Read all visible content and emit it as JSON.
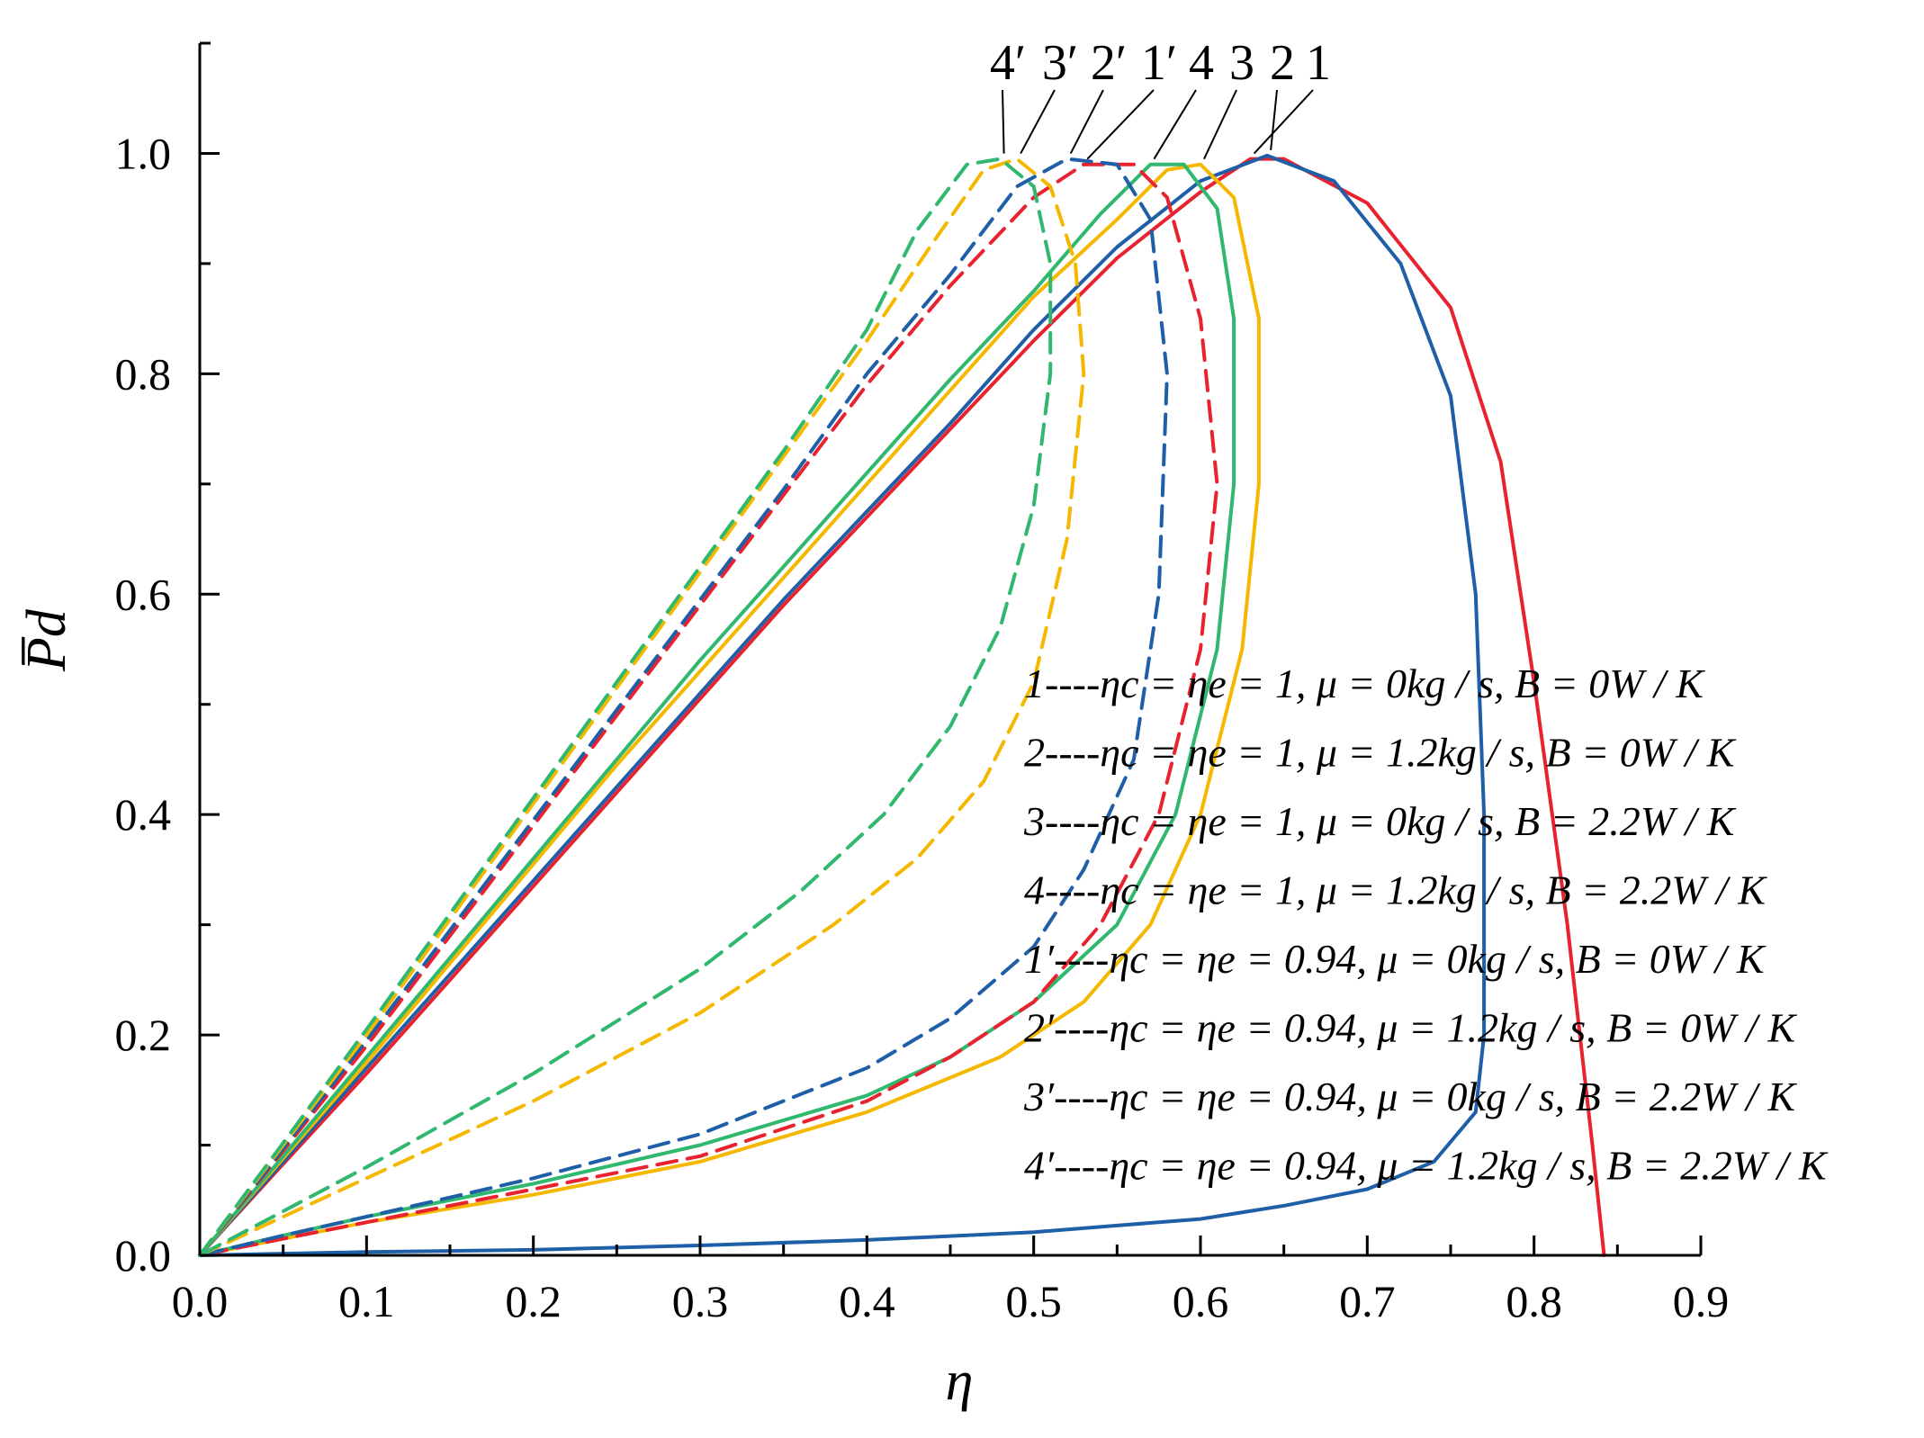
{
  "chart_data": {
    "type": "line",
    "xlabel": "η",
    "ylabel": "P̅d",
    "xlim": [
      0,
      0.9
    ],
    "ylim": [
      0,
      1.1
    ],
    "x_ticks": [
      "0.0",
      "0.1",
      "0.2",
      "0.3",
      "0.4",
      "0.5",
      "0.6",
      "0.7",
      "0.8",
      "0.9"
    ],
    "y_ticks": [
      "0.0",
      "0.2",
      "0.4",
      "0.6",
      "0.8",
      "1.0"
    ],
    "grid": false,
    "legend_position": "center-right",
    "series": [
      {
        "name": "1----ηc = ηe = 1,  μ = 0kg / s,  B = 0W / K",
        "label": "1",
        "color": "#e8222e",
        "dash": "solid",
        "points": [
          [
            0.0,
            0.0
          ],
          [
            0.05,
            0.083
          ],
          [
            0.1,
            0.165
          ],
          [
            0.15,
            0.25
          ],
          [
            0.2,
            0.335
          ],
          [
            0.25,
            0.42
          ],
          [
            0.3,
            0.505
          ],
          [
            0.35,
            0.59
          ],
          [
            0.4,
            0.67
          ],
          [
            0.45,
            0.75
          ],
          [
            0.5,
            0.83
          ],
          [
            0.55,
            0.905
          ],
          [
            0.6,
            0.965
          ],
          [
            0.63,
            0.995
          ],
          [
            0.65,
            0.995
          ],
          [
            0.7,
            0.955
          ],
          [
            0.75,
            0.86
          ],
          [
            0.78,
            0.72
          ],
          [
            0.8,
            0.52
          ],
          [
            0.82,
            0.3
          ],
          [
            0.835,
            0.1
          ],
          [
            0.842,
            0.0
          ]
        ]
      },
      {
        "name": "2----ηc = ηe = 1,  μ = 1.2kg / s, B = 0W / K",
        "label": "2",
        "color": "#1f5fa8",
        "dash": "solid",
        "points": [
          [
            0.0,
            0.0
          ],
          [
            0.05,
            0.085
          ],
          [
            0.1,
            0.17
          ],
          [
            0.15,
            0.255
          ],
          [
            0.2,
            0.34
          ],
          [
            0.25,
            0.425
          ],
          [
            0.3,
            0.51
          ],
          [
            0.35,
            0.595
          ],
          [
            0.4,
            0.675
          ],
          [
            0.45,
            0.755
          ],
          [
            0.5,
            0.84
          ],
          [
            0.55,
            0.915
          ],
          [
            0.6,
            0.975
          ],
          [
            0.64,
            0.998
          ],
          [
            0.68,
            0.975
          ],
          [
            0.72,
            0.9
          ],
          [
            0.75,
            0.78
          ],
          [
            0.765,
            0.6
          ],
          [
            0.77,
            0.4
          ],
          [
            0.77,
            0.2
          ],
          [
            0.765,
            0.13
          ],
          [
            0.74,
            0.085
          ],
          [
            0.7,
            0.06
          ],
          [
            0.65,
            0.045
          ],
          [
            0.6,
            0.033
          ],
          [
            0.55,
            0.027
          ],
          [
            0.5,
            0.021
          ],
          [
            0.4,
            0.014
          ],
          [
            0.3,
            0.009
          ],
          [
            0.2,
            0.005
          ],
          [
            0.1,
            0.003
          ],
          [
            0.0,
            0.0
          ]
        ]
      },
      {
        "name": "3----ηc = ηe = 1,  μ = 0kg / s,  B = 2.2W / K",
        "label": "3",
        "color": "#f5b800",
        "dash": "solid",
        "points": [
          [
            0.0,
            0.0
          ],
          [
            0.05,
            0.088
          ],
          [
            0.1,
            0.175
          ],
          [
            0.15,
            0.265
          ],
          [
            0.2,
            0.355
          ],
          [
            0.25,
            0.445
          ],
          [
            0.3,
            0.53
          ],
          [
            0.35,
            0.615
          ],
          [
            0.4,
            0.7
          ],
          [
            0.45,
            0.785
          ],
          [
            0.5,
            0.87
          ],
          [
            0.55,
            0.94
          ],
          [
            0.58,
            0.985
          ],
          [
            0.6,
            0.99
          ],
          [
            0.62,
            0.96
          ],
          [
            0.635,
            0.85
          ],
          [
            0.635,
            0.7
          ],
          [
            0.625,
            0.55
          ],
          [
            0.6,
            0.4
          ],
          [
            0.57,
            0.3
          ],
          [
            0.53,
            0.23
          ],
          [
            0.48,
            0.18
          ],
          [
            0.4,
            0.13
          ],
          [
            0.3,
            0.085
          ],
          [
            0.2,
            0.055
          ],
          [
            0.1,
            0.03
          ],
          [
            0.05,
            0.015
          ],
          [
            0.0,
            0.0
          ]
        ]
      },
      {
        "name": "4----ηc = ηe = 1,  μ = 1.2kg / s,  B = 2.2W / K",
        "label": "4",
        "color": "#2fb86e",
        "dash": "solid",
        "points": [
          [
            0.0,
            0.0
          ],
          [
            0.05,
            0.09
          ],
          [
            0.1,
            0.18
          ],
          [
            0.15,
            0.27
          ],
          [
            0.2,
            0.36
          ],
          [
            0.25,
            0.45
          ],
          [
            0.3,
            0.54
          ],
          [
            0.35,
            0.625
          ],
          [
            0.4,
            0.71
          ],
          [
            0.45,
            0.795
          ],
          [
            0.5,
            0.875
          ],
          [
            0.54,
            0.945
          ],
          [
            0.57,
            0.99
          ],
          [
            0.59,
            0.99
          ],
          [
            0.61,
            0.95
          ],
          [
            0.62,
            0.85
          ],
          [
            0.62,
            0.7
          ],
          [
            0.61,
            0.55
          ],
          [
            0.585,
            0.4
          ],
          [
            0.55,
            0.3
          ],
          [
            0.5,
            0.23
          ],
          [
            0.45,
            0.18
          ],
          [
            0.4,
            0.145
          ],
          [
            0.3,
            0.1
          ],
          [
            0.2,
            0.065
          ],
          [
            0.1,
            0.035
          ],
          [
            0.05,
            0.018
          ],
          [
            0.0,
            0.0
          ]
        ]
      },
      {
        "name": "1′----ηc = ηe = 0.94,  μ = 0kg / s,  B = 0W / K",
        "label": "1′",
        "color": "#e8222e",
        "dash": "dashed",
        "points": [
          [
            0.0,
            0.0
          ],
          [
            0.05,
            0.095
          ],
          [
            0.1,
            0.19
          ],
          [
            0.15,
            0.29
          ],
          [
            0.2,
            0.39
          ],
          [
            0.25,
            0.49
          ],
          [
            0.3,
            0.59
          ],
          [
            0.35,
            0.69
          ],
          [
            0.4,
            0.79
          ],
          [
            0.45,
            0.88
          ],
          [
            0.5,
            0.96
          ],
          [
            0.53,
            0.99
          ],
          [
            0.56,
            0.99
          ],
          [
            0.58,
            0.96
          ],
          [
            0.6,
            0.85
          ],
          [
            0.61,
            0.7
          ],
          [
            0.6,
            0.55
          ],
          [
            0.575,
            0.4
          ],
          [
            0.54,
            0.3
          ],
          [
            0.5,
            0.23
          ],
          [
            0.45,
            0.18
          ],
          [
            0.4,
            0.14
          ],
          [
            0.3,
            0.09
          ],
          [
            0.2,
            0.06
          ],
          [
            0.1,
            0.03
          ],
          [
            0.05,
            0.015
          ],
          [
            0.0,
            0.0
          ]
        ]
      },
      {
        "name": "2′----ηc = ηe = 0.94,  μ = 1.2kg / s,  B = 0W / K",
        "label": "2′",
        "color": "#1f5fa8",
        "dash": "dashed",
        "points": [
          [
            0.0,
            0.0
          ],
          [
            0.05,
            0.097
          ],
          [
            0.1,
            0.195
          ],
          [
            0.15,
            0.295
          ],
          [
            0.2,
            0.395
          ],
          [
            0.25,
            0.495
          ],
          [
            0.3,
            0.595
          ],
          [
            0.35,
            0.695
          ],
          [
            0.4,
            0.8
          ],
          [
            0.45,
            0.89
          ],
          [
            0.49,
            0.97
          ],
          [
            0.52,
            0.995
          ],
          [
            0.55,
            0.99
          ],
          [
            0.57,
            0.94
          ],
          [
            0.58,
            0.8
          ],
          [
            0.575,
            0.6
          ],
          [
            0.56,
            0.45
          ],
          [
            0.53,
            0.35
          ],
          [
            0.5,
            0.28
          ],
          [
            0.45,
            0.215
          ],
          [
            0.4,
            0.17
          ],
          [
            0.3,
            0.11
          ],
          [
            0.2,
            0.07
          ],
          [
            0.1,
            0.035
          ],
          [
            0.05,
            0.018
          ],
          [
            0.0,
            0.0
          ]
        ]
      },
      {
        "name": "3′----ηc = ηe = 0.94,  μ = 0kg / s,  B = 2.2W / K",
        "label": "3′",
        "color": "#f5b800",
        "dash": "dashed",
        "points": [
          [
            0.0,
            0.0
          ],
          [
            0.05,
            0.1
          ],
          [
            0.1,
            0.2
          ],
          [
            0.15,
            0.305
          ],
          [
            0.2,
            0.41
          ],
          [
            0.25,
            0.515
          ],
          [
            0.3,
            0.62
          ],
          [
            0.35,
            0.725
          ],
          [
            0.4,
            0.83
          ],
          [
            0.44,
            0.92
          ],
          [
            0.47,
            0.985
          ],
          [
            0.49,
            0.995
          ],
          [
            0.51,
            0.97
          ],
          [
            0.525,
            0.9
          ],
          [
            0.53,
            0.8
          ],
          [
            0.52,
            0.65
          ],
          [
            0.5,
            0.52
          ],
          [
            0.47,
            0.43
          ],
          [
            0.43,
            0.36
          ],
          [
            0.38,
            0.3
          ],
          [
            0.3,
            0.22
          ],
          [
            0.2,
            0.14
          ],
          [
            0.1,
            0.07
          ],
          [
            0.05,
            0.035
          ],
          [
            0.0,
            0.0
          ]
        ]
      },
      {
        "name": "4′----ηc = ηe = 0.94,  μ = 1.2kg / s,  B = 2.2W / K",
        "label": "4′",
        "color": "#2fb86e",
        "dash": "dashed",
        "points": [
          [
            0.0,
            0.0
          ],
          [
            0.05,
            0.102
          ],
          [
            0.1,
            0.205
          ],
          [
            0.15,
            0.31
          ],
          [
            0.2,
            0.415
          ],
          [
            0.25,
            0.52
          ],
          [
            0.3,
            0.625
          ],
          [
            0.35,
            0.73
          ],
          [
            0.4,
            0.84
          ],
          [
            0.43,
            0.93
          ],
          [
            0.46,
            0.99
          ],
          [
            0.48,
            0.995
          ],
          [
            0.5,
            0.97
          ],
          [
            0.51,
            0.9
          ],
          [
            0.51,
            0.8
          ],
          [
            0.5,
            0.68
          ],
          [
            0.48,
            0.57
          ],
          [
            0.45,
            0.48
          ],
          [
            0.41,
            0.4
          ],
          [
            0.36,
            0.33
          ],
          [
            0.3,
            0.26
          ],
          [
            0.2,
            0.165
          ],
          [
            0.1,
            0.08
          ],
          [
            0.05,
            0.04
          ],
          [
            0.0,
            0.0
          ]
        ]
      }
    ]
  }
}
